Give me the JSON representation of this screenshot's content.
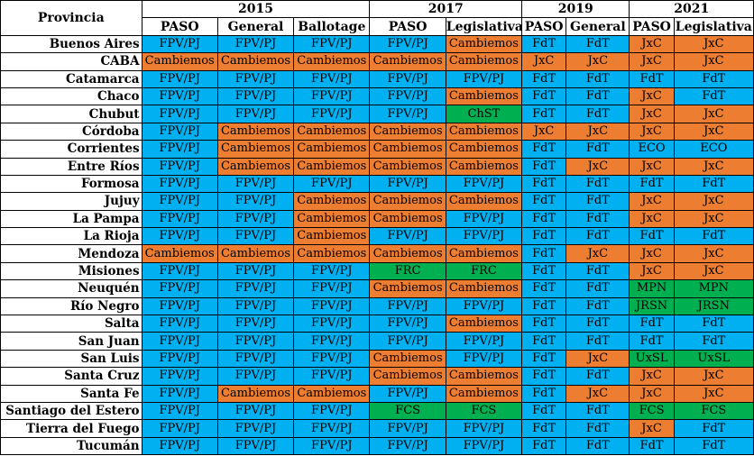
{
  "header": {
    "province_label": "Provincia",
    "years": [
      {
        "label": "2015",
        "span": 3
      },
      {
        "label": "2017",
        "span": 2
      },
      {
        "label": "2019",
        "span": 2
      },
      {
        "label": "2021",
        "span": 2
      }
    ],
    "elections": [
      "PASO",
      "General",
      "Ballotage",
      "PASO",
      "Legislativa",
      "PASO",
      "General",
      "PASO",
      "Legislativa"
    ]
  },
  "colors": {
    "blue": "#00b0f0",
    "orange": "#ed7d31",
    "green": "#00b050"
  },
  "party_colors": {
    "FPV/PJ": "blue",
    "FdT": "blue",
    "ECO": "blue",
    "FRC": "green",
    "FCS": "green",
    "Cambiemos": "orange",
    "JxC": "orange",
    "ChST": "green",
    "MPN": "green",
    "JRSN": "green",
    "UxSL": "green"
  },
  "rows": [
    {
      "province": "Buenos Aires",
      "results": [
        "FPV/PJ",
        "FPV/PJ",
        "FPV/PJ",
        "FPV/PJ",
        "Cambiemos",
        "FdT",
        "FdT",
        "JxC",
        "JxC"
      ]
    },
    {
      "province": "CABA",
      "results": [
        "Cambiemos",
        "Cambiemos",
        "Cambiemos",
        "Cambiemos",
        "Cambiemos",
        "JxC",
        "JxC",
        "JxC",
        "JxC"
      ]
    },
    {
      "province": "Catamarca",
      "results": [
        "FPV/PJ",
        "FPV/PJ",
        "FPV/PJ",
        "FPV/PJ",
        "FPV/PJ",
        "FdT",
        "FdT",
        "FdT",
        "FdT"
      ]
    },
    {
      "province": "Chaco",
      "results": [
        "FPV/PJ",
        "FPV/PJ",
        "FPV/PJ",
        "FPV/PJ",
        "Cambiemos",
        "FdT",
        "FdT",
        "JxC",
        "FdT"
      ]
    },
    {
      "province": "Chubut",
      "results": [
        "FPV/PJ",
        "FPV/PJ",
        "FPV/PJ",
        "FPV/PJ",
        "ChST",
        "FdT",
        "FdT",
        "JxC",
        "JxC"
      ]
    },
    {
      "province": "Córdoba",
      "results": [
        "FPV/PJ",
        "Cambiemos",
        "Cambiemos",
        "Cambiemos",
        "Cambiemos",
        "JxC",
        "JxC",
        "JxC",
        "JxC"
      ]
    },
    {
      "province": "Corrientes",
      "results": [
        "FPV/PJ",
        "Cambiemos",
        "Cambiemos",
        "Cambiemos",
        "Cambiemos",
        "FdT",
        "FdT",
        "ECO",
        "ECO"
      ]
    },
    {
      "province": "Entre Ríos",
      "results": [
        "FPV/PJ",
        "Cambiemos",
        "Cambiemos",
        "Cambiemos",
        "Cambiemos",
        "FdT",
        "JxC",
        "JxC",
        "JxC"
      ]
    },
    {
      "province": "Formosa",
      "results": [
        "FPV/PJ",
        "FPV/PJ",
        "FPV/PJ",
        "FPV/PJ",
        "FPV/PJ",
        "FdT",
        "FdT",
        "FdT",
        "FdT"
      ]
    },
    {
      "province": "Jujuy",
      "results": [
        "FPV/PJ",
        "FPV/PJ",
        "Cambiemos",
        "Cambiemos",
        "Cambiemos",
        "FdT",
        "FdT",
        "JxC",
        "JxC"
      ]
    },
    {
      "province": "La Pampa",
      "results": [
        "FPV/PJ",
        "FPV/PJ",
        "Cambiemos",
        "Cambiemos",
        "FPV/PJ",
        "FdT",
        "FdT",
        "JxC",
        "JxC"
      ]
    },
    {
      "province": "La Rioja",
      "results": [
        "FPV/PJ",
        "FPV/PJ",
        "Cambiemos",
        "FPV/PJ",
        "FPV/PJ",
        "FdT",
        "FdT",
        "FdT",
        "FdT"
      ]
    },
    {
      "province": "Mendoza",
      "results": [
        "Cambiemos",
        "Cambiemos",
        "Cambiemos",
        "Cambiemos",
        "Cambiemos",
        "FdT",
        "JxC",
        "JxC",
        "JxC"
      ]
    },
    {
      "province": "Misiones",
      "results": [
        "FPV/PJ",
        "FPV/PJ",
        "FPV/PJ",
        "FRC",
        "FRC",
        "FdT",
        "FdT",
        "JxC",
        "JxC"
      ]
    },
    {
      "province": "Neuquén",
      "results": [
        "FPV/PJ",
        "FPV/PJ",
        "FPV/PJ",
        "Cambiemos",
        "Cambiemos",
        "FdT",
        "FdT",
        "MPN",
        "MPN"
      ]
    },
    {
      "province": "Río Negro",
      "results": [
        "FPV/PJ",
        "FPV/PJ",
        "FPV/PJ",
        "FPV/PJ",
        "FPV/PJ",
        "FdT",
        "FdT",
        "JRSN",
        "JRSN"
      ]
    },
    {
      "province": "Salta",
      "results": [
        "FPV/PJ",
        "FPV/PJ",
        "FPV/PJ",
        "FPV/PJ",
        "Cambiemos",
        "FdT",
        "FdT",
        "FdT",
        "FdT"
      ]
    },
    {
      "province": "San Juan",
      "results": [
        "FPV/PJ",
        "FPV/PJ",
        "FPV/PJ",
        "FPV/PJ",
        "FPV/PJ",
        "FdT",
        "FdT",
        "FdT",
        "FdT"
      ]
    },
    {
      "province": "San Luis",
      "results": [
        "FPV/PJ",
        "FPV/PJ",
        "FPV/PJ",
        "Cambiemos",
        "FPV/PJ",
        "FdT",
        "JxC",
        "UxSL",
        "UxSL"
      ]
    },
    {
      "province": "Santa Cruz",
      "results": [
        "FPV/PJ",
        "FPV/PJ",
        "FPV/PJ",
        "Cambiemos",
        "Cambiemos",
        "FdT",
        "FdT",
        "JxC",
        "JxC"
      ]
    },
    {
      "province": "Santa Fe",
      "results": [
        "FPV/PJ",
        "Cambiemos",
        "Cambiemos",
        "FPV/PJ",
        "Cambiemos",
        "FdT",
        "JxC",
        "JxC",
        "JxC"
      ]
    },
    {
      "province": "Santiago del Estero",
      "results": [
        "FPV/PJ",
        "FPV/PJ",
        "FPV/PJ",
        "FCS",
        "FCS",
        "FdT",
        "FdT",
        "FCS",
        "FCS"
      ]
    },
    {
      "province": "Tierra del Fuego",
      "results": [
        "FPV/PJ",
        "FPV/PJ",
        "FPV/PJ",
        "FPV/PJ",
        "FPV/PJ",
        "FdT",
        "FdT",
        "JxC",
        "FdT"
      ]
    },
    {
      "province": "Tucumán",
      "results": [
        "FPV/PJ",
        "FPV/PJ",
        "FPV/PJ",
        "FPV/PJ",
        "FPV/PJ",
        "FdT",
        "FdT",
        "FdT",
        "FdT"
      ]
    }
  ]
}
